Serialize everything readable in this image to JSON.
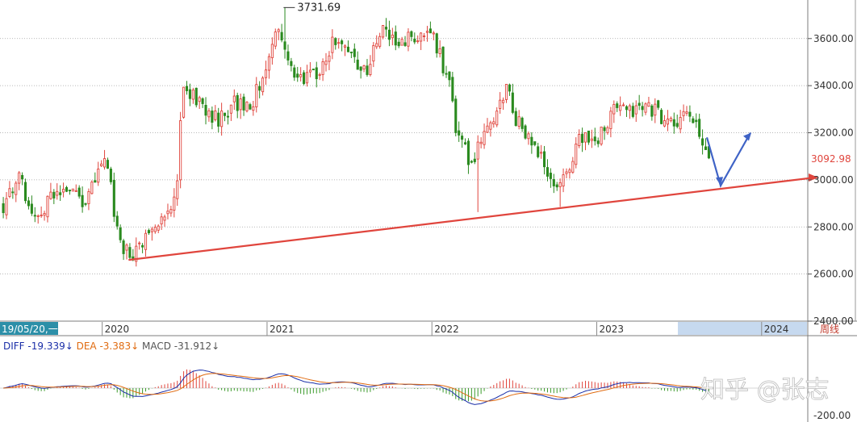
{
  "chart_data": [
    {
      "type": "candlestick",
      "title": "",
      "period_label": "周线",
      "ylim": [
        2400,
        3750
      ],
      "y_ticks": [
        "3600.00",
        "3400.00",
        "3200.00",
        "3000.00",
        "2800.00",
        "2600.00",
        "2400.00"
      ],
      "y_tick_values": [
        3600,
        3400,
        3200,
        3000,
        2800,
        2600,
        2400
      ],
      "x_ticks": [
        "2020",
        "2021",
        "2022",
        "2023",
        "2024"
      ],
      "cursor_date": "19/05/20,一",
      "high_annotation": {
        "label": "3731.69",
        "value": 3731.69
      },
      "last_price": {
        "label": "3092.98",
        "value": 3092.98
      },
      "series_close_approx": [
        [
          2019.4,
          2890
        ],
        [
          2019.5,
          3010
        ],
        [
          2019.6,
          2820
        ],
        [
          2019.7,
          2940
        ],
        [
          2019.8,
          2980
        ],
        [
          2019.9,
          2900
        ],
        [
          2020.0,
          3080
        ],
        [
          2020.05,
          3000
        ],
        [
          2020.1,
          2720
        ],
        [
          2020.2,
          2690
        ],
        [
          2020.3,
          2780
        ],
        [
          2020.4,
          2860
        ],
        [
          2020.45,
          2960
        ],
        [
          2020.47,
          3200
        ],
        [
          2020.5,
          3400
        ],
        [
          2020.6,
          3320
        ],
        [
          2020.7,
          3250
        ],
        [
          2020.8,
          3330
        ],
        [
          2020.9,
          3300
        ],
        [
          2021.0,
          3500
        ],
        [
          2021.05,
          3650
        ],
        [
          2021.1,
          3560
        ],
        [
          2021.2,
          3420
        ],
        [
          2021.3,
          3450
        ],
        [
          2021.4,
          3580
        ],
        [
          2021.5,
          3540
        ],
        [
          2021.6,
          3450
        ],
        [
          2021.7,
          3640
        ],
        [
          2021.8,
          3560
        ],
        [
          2021.9,
          3620
        ],
        [
          2022.0,
          3630
        ],
        [
          2022.05,
          3520
        ],
        [
          2022.1,
          3430
        ],
        [
          2022.15,
          3200
        ],
        [
          2022.25,
          3050
        ],
        [
          2022.3,
          3200
        ],
        [
          2022.4,
          3270
        ],
        [
          2022.45,
          3410
        ],
        [
          2022.5,
          3270
        ],
        [
          2022.6,
          3150
        ],
        [
          2022.7,
          3050
        ],
        [
          2022.75,
          2960
        ],
        [
          2022.8,
          3000
        ],
        [
          2022.9,
          3180
        ],
        [
          2023.0,
          3170
        ],
        [
          2023.1,
          3300
        ],
        [
          2023.2,
          3280
        ],
        [
          2023.3,
          3310
        ],
        [
          2023.4,
          3270
        ],
        [
          2023.5,
          3220
        ],
        [
          2023.55,
          3300
        ],
        [
          2023.6,
          3220
        ],
        [
          2023.65,
          3110
        ],
        [
          2023.68,
          3092.98
        ]
      ],
      "macd": {
        "labels": {
          "diff": "DIFF",
          "dea": "DEA",
          "macd": "MACD"
        },
        "values": {
          "diff": "-19.339↓",
          "dea": "-3.383↓",
          "macd": "-31.912↓"
        },
        "axis_min": "-200.00",
        "diff_color": "#1b2fa8",
        "dea_color": "#e06b10",
        "up_color": "#e0453d",
        "down_color": "#3a9a2a"
      },
      "colors": {
        "up": "#e0453d",
        "down": "#2a8a1f",
        "trend": "#e0453d",
        "arrow": "#3f63c6"
      },
      "watermark": "知乎 @张志"
    }
  ]
}
